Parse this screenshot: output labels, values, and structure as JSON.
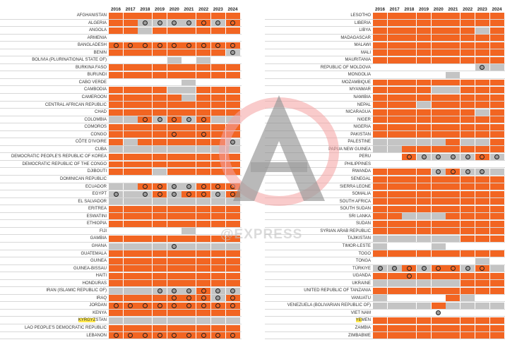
{
  "years": [
    "2016",
    "2017",
    "2018",
    "2019",
    "2020",
    "2021",
    "2022",
    "2023",
    "2024"
  ],
  "watermark": {
    "text": "@EXPRESS"
  },
  "colors": {
    "orange": "#f26522",
    "grey": "#c4c4c4",
    "ring": "#222222"
  },
  "legend_codes": {
    "o": "orange-filled cell",
    "g": "grey-filled cell",
    "w": "blank cell",
    "O": "orange cell with ringed dot",
    "G": "grey cell with ringed dot",
    "W": "blank cell with ringed dot"
  },
  "left_countries": [
    {
      "name": "AFGHANISTAN",
      "cells": [
        "o",
        "o",
        "o",
        "o",
        "o",
        "o",
        "o",
        "o",
        "o"
      ]
    },
    {
      "name": "ALGERIA",
      "cells": [
        "o",
        "o",
        "G",
        "G",
        "G",
        "G",
        "O",
        "G",
        "O"
      ]
    },
    {
      "name": "ANGOLA",
      "cells": [
        "o",
        "o",
        "g",
        "o",
        "o",
        "o",
        "o",
        "o",
        "o"
      ]
    },
    {
      "name": "ARMENIA",
      "cells": [
        "w",
        "w",
        "w",
        "w",
        "w",
        "w",
        "w",
        "w",
        "w"
      ]
    },
    {
      "name": "BANGLADESH",
      "cells": [
        "O",
        "O",
        "O",
        "O",
        "O",
        "O",
        "O",
        "O",
        "O"
      ]
    },
    {
      "name": "BENIN",
      "cells": [
        "o",
        "o",
        "o",
        "o",
        "o",
        "o",
        "o",
        "o",
        "G"
      ]
    },
    {
      "name": "BOLIVIA (PLURINATIONAL STATE OF)",
      "cells": [
        "w",
        "w",
        "w",
        "w",
        "g",
        "w",
        "g",
        "w",
        "w"
      ]
    },
    {
      "name": "BURKINA FASO",
      "cells": [
        "o",
        "o",
        "o",
        "o",
        "o",
        "o",
        "o",
        "o",
        "o"
      ]
    },
    {
      "name": "BURUNDI",
      "cells": [
        "o",
        "o",
        "o",
        "o",
        "o",
        "o",
        "o",
        "o",
        "o"
      ]
    },
    {
      "name": "CABO VERDE",
      "cells": [
        "w",
        "w",
        "w",
        "w",
        "w",
        "g",
        "w",
        "w",
        "w"
      ]
    },
    {
      "name": "CAMBODIA",
      "cells": [
        "o",
        "o",
        "o",
        "o",
        "g",
        "g",
        "o",
        "o",
        "o"
      ]
    },
    {
      "name": "CAMEROON",
      "cells": [
        "o",
        "o",
        "o",
        "o",
        "o",
        "g",
        "o",
        "o",
        "o"
      ]
    },
    {
      "name": "CENTRAL AFRICAN REPUBLIC",
      "cells": [
        "o",
        "o",
        "o",
        "o",
        "o",
        "o",
        "o",
        "o",
        "o"
      ]
    },
    {
      "name": "CHAD",
      "cells": [
        "o",
        "o",
        "o",
        "o",
        "o",
        "o",
        "o",
        "o",
        "o"
      ]
    },
    {
      "name": "COLOMBIA",
      "cells": [
        "g",
        "g",
        "O",
        "G",
        "O",
        "G",
        "O",
        "g",
        "g"
      ]
    },
    {
      "name": "COMOROS",
      "cells": [
        "o",
        "o",
        "o",
        "o",
        "o",
        "o",
        "o",
        "o",
        "o"
      ]
    },
    {
      "name": "CONGO",
      "cells": [
        "o",
        "o",
        "o",
        "o",
        "O",
        "o",
        "O",
        "o",
        "o"
      ]
    },
    {
      "name": "CÔTE D'IVOIRE",
      "cells": [
        "o",
        "g",
        "o",
        "o",
        "o",
        "o",
        "o",
        "o",
        "G"
      ]
    },
    {
      "name": "CUBA",
      "cells": [
        "g",
        "g",
        "g",
        "g",
        "g",
        "g",
        "g",
        "g",
        "g"
      ]
    },
    {
      "name": "DEMOCRATIC PEOPLE'S REPUBLIC OF KOREA",
      "cells": [
        "o",
        "o",
        "o",
        "o",
        "o",
        "o",
        "o",
        "o",
        "o"
      ]
    },
    {
      "name": "DEMOCRATIC REPUBLIC OF THE CONGO",
      "cells": [
        "o",
        "o",
        "o",
        "o",
        "o",
        "o",
        "o",
        "o",
        "o"
      ]
    },
    {
      "name": "DJIBOUTI",
      "cells": [
        "o",
        "o",
        "o",
        "g",
        "o",
        "o",
        "o",
        "o",
        "o"
      ]
    },
    {
      "name": "DOMINICAN REPUBLIC",
      "cells": [
        "w",
        "w",
        "w",
        "w",
        "w",
        "w",
        "w",
        "w",
        "w"
      ]
    },
    {
      "name": "ECUADOR",
      "cells": [
        "g",
        "g",
        "O",
        "O",
        "G",
        "G",
        "O",
        "O",
        "O"
      ]
    },
    {
      "name": "EGYPT",
      "cells": [
        "G",
        "g",
        "G",
        "O",
        "G",
        "O",
        "O",
        "G",
        "O"
      ]
    },
    {
      "name": "EL SALVADOR",
      "cells": [
        "g",
        "g",
        "g",
        "g",
        "g",
        "g",
        "g",
        "g",
        "g"
      ]
    },
    {
      "name": "ERITREA",
      "cells": [
        "o",
        "o",
        "o",
        "o",
        "o",
        "o",
        "o",
        "o",
        "o"
      ]
    },
    {
      "name": "ESWATINI",
      "cells": [
        "o",
        "o",
        "o",
        "o",
        "o",
        "o",
        "o",
        "o",
        "o"
      ]
    },
    {
      "name": "ETHIOPIA",
      "cells": [
        "o",
        "o",
        "o",
        "o",
        "o",
        "o",
        "o",
        "o",
        "o"
      ]
    },
    {
      "name": "FIJI",
      "cells": [
        "w",
        "w",
        "w",
        "w",
        "w",
        "g",
        "w",
        "w",
        "w"
      ]
    },
    {
      "name": "GAMBIA",
      "cells": [
        "o",
        "o",
        "o",
        "o",
        "o",
        "o",
        "o",
        "o",
        "o"
      ]
    },
    {
      "name": "GHANA",
      "cells": [
        "g",
        "g",
        "g",
        "g",
        "G",
        "g",
        "g",
        "g",
        "g"
      ]
    },
    {
      "name": "GUATEMALA",
      "cells": [
        "o",
        "o",
        "o",
        "o",
        "o",
        "o",
        "o",
        "o",
        "o"
      ]
    },
    {
      "name": "GUINEA",
      "cells": [
        "o",
        "o",
        "o",
        "o",
        "o",
        "o",
        "o",
        "o",
        "o"
      ]
    },
    {
      "name": "GUINEA-BISSAU",
      "cells": [
        "o",
        "o",
        "o",
        "o",
        "o",
        "o",
        "o",
        "o",
        "o"
      ]
    },
    {
      "name": "HAITI",
      "cells": [
        "o",
        "o",
        "o",
        "o",
        "o",
        "o",
        "o",
        "o",
        "o"
      ]
    },
    {
      "name": "HONDURAS",
      "cells": [
        "o",
        "o",
        "o",
        "o",
        "o",
        "o",
        "o",
        "o",
        "o"
      ]
    },
    {
      "name": "IRAN (ISLAMIC REPUBLIC OF)",
      "cells": [
        "g",
        "g",
        "g",
        "G",
        "G",
        "G",
        "O",
        "G",
        "G"
      ]
    },
    {
      "name": "IRAQ",
      "cells": [
        "o",
        "o",
        "o",
        "o",
        "O",
        "O",
        "O",
        "G",
        "O"
      ]
    },
    {
      "name": "JORDAN",
      "cells": [
        "O",
        "O",
        "O",
        "O",
        "O",
        "O",
        "O",
        "O",
        "O"
      ]
    },
    {
      "name": "KENYA",
      "cells": [
        "o",
        "o",
        "o",
        "o",
        "o",
        "o",
        "o",
        "o",
        "o"
      ]
    },
    {
      "name": "KYRGYZSTAN",
      "highlight": "KYRGYZ",
      "rest": "STAN",
      "cells": [
        "g",
        "g",
        "g",
        "g",
        "g",
        "g",
        "g",
        "g",
        "g"
      ]
    },
    {
      "name": "LAO PEOPLE'S DEMOCRATIC REPUBLIC",
      "cells": [
        "o",
        "o",
        "o",
        "o",
        "o",
        "o",
        "o",
        "o",
        "o"
      ]
    },
    {
      "name": "LEBANON",
      "cells": [
        "O",
        "O",
        "O",
        "O",
        "O",
        "O",
        "O",
        "O",
        "O"
      ]
    }
  ],
  "right_countries": [
    {
      "name": "LESOTHO",
      "cells": [
        "o",
        "o",
        "o",
        "o",
        "o",
        "o",
        "o",
        "o",
        "o"
      ]
    },
    {
      "name": "LIBERIA",
      "cells": [
        "o",
        "o",
        "o",
        "o",
        "o",
        "o",
        "o",
        "o",
        "o"
      ]
    },
    {
      "name": "LIBYA",
      "cells": [
        "o",
        "o",
        "o",
        "o",
        "o",
        "o",
        "o",
        "g",
        "o"
      ]
    },
    {
      "name": "MADAGASCAR",
      "cells": [
        "o",
        "o",
        "o",
        "o",
        "o",
        "o",
        "o",
        "o",
        "o"
      ]
    },
    {
      "name": "MALAWI",
      "cells": [
        "o",
        "o",
        "o",
        "o",
        "o",
        "o",
        "o",
        "o",
        "o"
      ]
    },
    {
      "name": "MALI",
      "cells": [
        "o",
        "o",
        "o",
        "o",
        "o",
        "o",
        "o",
        "o",
        "o"
      ]
    },
    {
      "name": "MAURITANIA",
      "cells": [
        "o",
        "o",
        "o",
        "o",
        "o",
        "o",
        "o",
        "o",
        "o"
      ]
    },
    {
      "name": "REPUBLIC OF MOLDOVA",
      "cells": [
        "w",
        "w",
        "w",
        "w",
        "w",
        "w",
        "w",
        "G",
        "g"
      ]
    },
    {
      "name": "MONGOLIA",
      "cells": [
        "w",
        "w",
        "w",
        "w",
        "w",
        "g",
        "w",
        "w",
        "w"
      ]
    },
    {
      "name": "MOZAMBIQUE",
      "cells": [
        "o",
        "o",
        "o",
        "o",
        "o",
        "o",
        "o",
        "o",
        "o"
      ]
    },
    {
      "name": "MYANMAR",
      "cells": [
        "o",
        "o",
        "o",
        "o",
        "g",
        "g",
        "o",
        "o",
        "o"
      ]
    },
    {
      "name": "NAMIBIA",
      "cells": [
        "o",
        "o",
        "o",
        "o",
        "o",
        "o",
        "o",
        "o",
        "o"
      ]
    },
    {
      "name": "NEPAL",
      "cells": [
        "o",
        "o",
        "o",
        "g",
        "o",
        "o",
        "o",
        "o",
        "o"
      ]
    },
    {
      "name": "NICARAGUA",
      "cells": [
        "o",
        "o",
        "o",
        "o",
        "o",
        "o",
        "o",
        "g",
        "o"
      ]
    },
    {
      "name": "NIGER",
      "cells": [
        "o",
        "o",
        "o",
        "o",
        "o",
        "o",
        "o",
        "o",
        "o"
      ]
    },
    {
      "name": "NIGERIA",
      "cells": [
        "o",
        "o",
        "o",
        "o",
        "o",
        "o",
        "o",
        "o",
        "o"
      ]
    },
    {
      "name": "PAKISTAN",
      "cells": [
        "o",
        "o",
        "o",
        "o",
        "o",
        "o",
        "o",
        "o",
        "o"
      ]
    },
    {
      "name": "PALESTINE",
      "cells": [
        "g",
        "g",
        "g",
        "g",
        "g",
        "o",
        "g",
        "g",
        "o"
      ]
    },
    {
      "name": "PAPUA NEW GUINEA",
      "cells": [
        "g",
        "g",
        "o",
        "o",
        "o",
        "o",
        "o",
        "o",
        "o"
      ]
    },
    {
      "name": "PERU",
      "cells": [
        "w",
        "w",
        "O",
        "G",
        "G",
        "G",
        "G",
        "O",
        "G"
      ]
    },
    {
      "name": "PHILIPPINES",
      "cells": [
        "w",
        "w",
        "w",
        "w",
        "w",
        "w",
        "w",
        "w",
        "w"
      ]
    },
    {
      "name": "RWANDA",
      "cells": [
        "o",
        "o",
        "o",
        "o",
        "G",
        "O",
        "G",
        "G",
        "g"
      ]
    },
    {
      "name": "SENEGAL",
      "cells": [
        "o",
        "o",
        "o",
        "o",
        "o",
        "o",
        "o",
        "o",
        "o"
      ]
    },
    {
      "name": "SIERRA LEONE",
      "cells": [
        "o",
        "o",
        "o",
        "o",
        "o",
        "o",
        "o",
        "o",
        "o"
      ]
    },
    {
      "name": "SOMALIA",
      "cells": [
        "o",
        "o",
        "o",
        "o",
        "o",
        "o",
        "o",
        "o",
        "o"
      ]
    },
    {
      "name": "SOUTH AFRICA",
      "cells": [
        "o",
        "o",
        "o",
        "o",
        "o",
        "o",
        "o",
        "o",
        "o"
      ]
    },
    {
      "name": "SOUTH SUDAN",
      "cells": [
        "o",
        "o",
        "o",
        "o",
        "o",
        "o",
        "o",
        "o",
        "o"
      ]
    },
    {
      "name": "SRI LANKA",
      "cells": [
        "o",
        "o",
        "g",
        "g",
        "g",
        "o",
        "o",
        "o",
        "o"
      ]
    },
    {
      "name": "SUDAN",
      "cells": [
        "o",
        "o",
        "o",
        "o",
        "o",
        "o",
        "o",
        "o",
        "o"
      ]
    },
    {
      "name": "SYRIAN ARAB REPUBLIC",
      "cells": [
        "o",
        "o",
        "o",
        "o",
        "o",
        "o",
        "o",
        "o",
        "o"
      ]
    },
    {
      "name": "TAJIKISTAN",
      "cells": [
        "g",
        "g",
        "g",
        "g",
        "g",
        "g",
        "o",
        "o",
        "o"
      ]
    },
    {
      "name": "TIMOR-LESTE",
      "cells": [
        "g",
        "w",
        "w",
        "w",
        "g",
        "w",
        "w",
        "w",
        "w"
      ]
    },
    {
      "name": "TOGO",
      "cells": [
        "o",
        "o",
        "o",
        "o",
        "o",
        "o",
        "o",
        "o",
        "o"
      ]
    },
    {
      "name": "TONGA",
      "cells": [
        "w",
        "w",
        "w",
        "w",
        "w",
        "w",
        "w",
        "g",
        "w"
      ]
    },
    {
      "name": "TÜRKIYE",
      "cells": [
        "G",
        "G",
        "O",
        "G",
        "O",
        "O",
        "G",
        "O",
        "g"
      ]
    },
    {
      "name": "UGANDA",
      "cells": [
        "o",
        "o",
        "O",
        "o",
        "o",
        "o",
        "o",
        "o",
        "o"
      ]
    },
    {
      "name": "UKRAINE",
      "cells": [
        "g",
        "g",
        "g",
        "g",
        "g",
        "g",
        "o",
        "o",
        "o"
      ]
    },
    {
      "name": "UNITED REPUBLIC OF TANZANIA",
      "cells": [
        "o",
        "o",
        "o",
        "o",
        "o",
        "o",
        "o",
        "o",
        "o"
      ]
    },
    {
      "name": "VANUATU",
      "cells": [
        "g",
        "w",
        "w",
        "w",
        "w",
        "o",
        "g",
        "w",
        "w"
      ]
    },
    {
      "name": "VENEZUELA (BOLIVARIAN REPUBLIC OF)",
      "cells": [
        "g",
        "g",
        "g",
        "g",
        "o",
        "g",
        "g",
        "g",
        "g"
      ]
    },
    {
      "name": "VIET NAM",
      "cells": [
        "w",
        "w",
        "w",
        "w",
        "W",
        "w",
        "w",
        "w",
        "w"
      ]
    },
    {
      "name": "YEMEN",
      "highlight": "YE",
      "rest": "MEN",
      "cells": [
        "o",
        "o",
        "o",
        "o",
        "o",
        "o",
        "o",
        "o",
        "o"
      ]
    },
    {
      "name": "ZAMBIA",
      "cells": [
        "o",
        "o",
        "o",
        "o",
        "o",
        "o",
        "o",
        "o",
        "o"
      ]
    },
    {
      "name": "ZIMBABWE",
      "cells": [
        "o",
        "o",
        "o",
        "o",
        "o",
        "o",
        "o",
        "o",
        "o"
      ]
    }
  ]
}
